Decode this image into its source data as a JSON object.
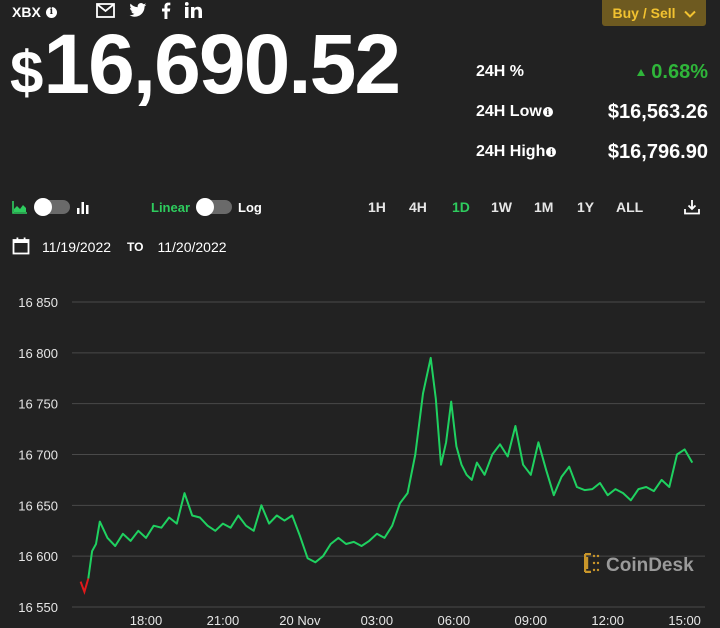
{
  "header": {
    "ticker": "XBX",
    "info_icon": "i",
    "social": [
      "mail-icon",
      "twitter-icon",
      "facebook-icon",
      "linkedin-icon"
    ],
    "buy_sell_label": "Buy / Sell",
    "buy_sell_icon": "chevron-down-icon",
    "buy_sell_color": "#f2c230"
  },
  "price": {
    "currency": "$",
    "value": "16,690.52"
  },
  "stats": {
    "change_label": "24H %",
    "change_value": "0.68%",
    "change_direction": "up",
    "change_color": "#2fb53a",
    "low_label": "24H Low",
    "low_value": "$16,563.26",
    "high_label": "24H High",
    "high_value": "$16,796.90"
  },
  "controls": {
    "chart_type_left_icon": "area-chart-icon",
    "chart_type_right_icon": "bar-chart-icon",
    "scale_linear": "Linear",
    "scale_log": "Log",
    "ranges": [
      "1H",
      "4H",
      "1D",
      "1W",
      "1M",
      "1Y",
      "ALL"
    ],
    "active_range": "1D",
    "download_icon": "download-icon",
    "accent_color": "#2ecc5e"
  },
  "date_range": {
    "from": "11/19/2022",
    "to_label": "TO",
    "to": "11/20/2022"
  },
  "watermark": "CoinDesk",
  "chart_data": {
    "type": "line",
    "title": "",
    "xlabel": "",
    "ylabel": "",
    "y_ticks": [
      "16 850",
      "16 800",
      "16 750",
      "16 700",
      "16 650",
      "16 600",
      "16 550"
    ],
    "y_tick_values": [
      16850,
      16800,
      16750,
      16700,
      16650,
      16600,
      16550
    ],
    "x_ticks": [
      "18:00",
      "21:00",
      "20 Nov",
      "03:00",
      "06:00",
      "09:00",
      "12:00",
      "15:00"
    ],
    "ylim": [
      16550,
      16850
    ],
    "grid": true,
    "legend": "none",
    "series": [
      {
        "name": "XBX price (USD)",
        "color": "#1fd160",
        "start_color": "#e0191b",
        "x_hours_from_18_00": [
          -2.55,
          -2.4,
          -2.25,
          -2.1,
          -1.95,
          -1.8,
          -1.5,
          -1.2,
          -0.9,
          -0.6,
          -0.3,
          0.0,
          0.3,
          0.6,
          0.9,
          1.2,
          1.5,
          1.8,
          2.1,
          2.4,
          2.7,
          3.0,
          3.3,
          3.6,
          3.9,
          4.2,
          4.5,
          4.8,
          5.1,
          5.4,
          5.7,
          6.0,
          6.3,
          6.6,
          6.9,
          7.2,
          7.5,
          7.8,
          8.1,
          8.4,
          8.7,
          9.0,
          9.3,
          9.6,
          9.9,
          10.2,
          10.5,
          10.8,
          11.1,
          11.3,
          11.5,
          11.7,
          11.9,
          12.1,
          12.3,
          12.5,
          12.7,
          12.9,
          13.2,
          13.5,
          13.8,
          14.1,
          14.4,
          14.7,
          15.0,
          15.3,
          15.6,
          15.9,
          16.2,
          16.5,
          16.8,
          17.1,
          17.4,
          17.7,
          18.0,
          18.3,
          18.6,
          18.9,
          19.2,
          19.5,
          19.8,
          20.1,
          20.4,
          20.7,
          21.0,
          21.3
        ],
        "values": [
          16575,
          16565,
          16578,
          16605,
          16612,
          16634,
          16618,
          16610,
          16622,
          16615,
          16625,
          16618,
          16630,
          16628,
          16638,
          16632,
          16662,
          16640,
          16638,
          16630,
          16625,
          16632,
          16628,
          16640,
          16630,
          16625,
          16650,
          16632,
          16640,
          16635,
          16640,
          16620,
          16598,
          16594,
          16600,
          16612,
          16618,
          16612,
          16614,
          16610,
          16615,
          16622,
          16618,
          16630,
          16652,
          16662,
          16700,
          16760,
          16795,
          16755,
          16690,
          16712,
          16752,
          16708,
          16690,
          16680,
          16675,
          16692,
          16680,
          16700,
          16710,
          16698,
          16728,
          16690,
          16680,
          16712,
          16685,
          16660,
          16678,
          16688,
          16668,
          16665,
          16666,
          16672,
          16660,
          16666,
          16662,
          16655,
          16666,
          16668,
          16664,
          16675,
          16668,
          16700,
          16705,
          16692
        ]
      }
    ]
  }
}
